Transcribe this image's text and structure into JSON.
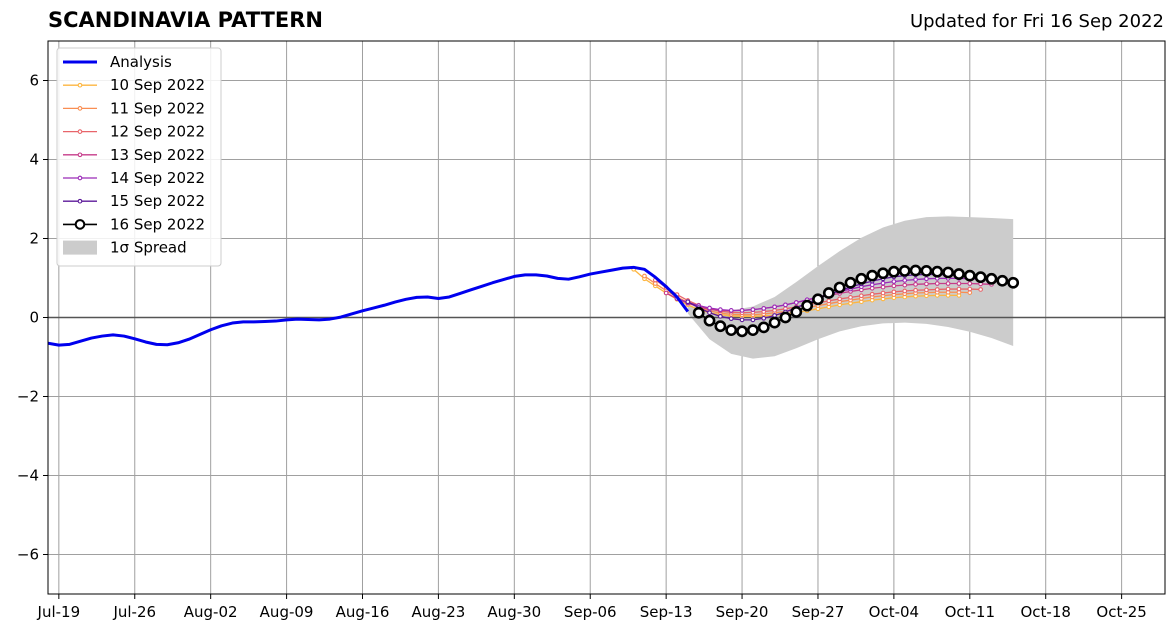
{
  "header": {
    "title": "SCANDINAVIA PATTERN",
    "updated": "Updated for Fri 16 Sep 2022"
  },
  "chart_data": {
    "type": "line",
    "title": "SCANDINAVIA PATTERN",
    "xlabel": "",
    "ylabel": "",
    "xlim": [
      "2022-07-18",
      "2022-10-29"
    ],
    "ylim": [
      -7,
      7
    ],
    "x_ticks": [
      "2022-07-19",
      "2022-07-26",
      "2022-08-02",
      "2022-08-09",
      "2022-08-16",
      "2022-08-23",
      "2022-08-30",
      "2022-09-06",
      "2022-09-13",
      "2022-09-20",
      "2022-09-27",
      "2022-10-04",
      "2022-10-11",
      "2022-10-18",
      "2022-10-25"
    ],
    "x_tick_labels": [
      "Jul-19",
      "Jul-26",
      "Aug-02",
      "Aug-09",
      "Aug-16",
      "Aug-23",
      "Aug-30",
      "Sep-06",
      "Sep-13",
      "Sep-20",
      "Sep-27",
      "Oct-04",
      "Oct-11",
      "Oct-18",
      "Oct-25"
    ],
    "y_ticks": [
      -6,
      -4,
      -2,
      0,
      2,
      4,
      6
    ],
    "y_tick_labels": [
      "−6",
      "−4",
      "−2",
      "0",
      "2",
      "4",
      "6"
    ],
    "grid": true,
    "zero_line": 0,
    "legend_position": "top-left",
    "analysis": {
      "name": "Analysis",
      "color": "#0000ee",
      "x": [
        "2022-07-18",
        "2022-07-19",
        "2022-07-20",
        "2022-07-21",
        "2022-07-22",
        "2022-07-23",
        "2022-07-24",
        "2022-07-25",
        "2022-07-26",
        "2022-07-27",
        "2022-07-28",
        "2022-07-29",
        "2022-07-30",
        "2022-07-31",
        "2022-08-01",
        "2022-08-02",
        "2022-08-03",
        "2022-08-04",
        "2022-08-05",
        "2022-08-06",
        "2022-08-07",
        "2022-08-08",
        "2022-08-09",
        "2022-08-10",
        "2022-08-11",
        "2022-08-12",
        "2022-08-13",
        "2022-08-14",
        "2022-08-15",
        "2022-08-16",
        "2022-08-17",
        "2022-08-18",
        "2022-08-19",
        "2022-08-20",
        "2022-08-21",
        "2022-08-22",
        "2022-08-23",
        "2022-08-24",
        "2022-08-25",
        "2022-08-26",
        "2022-08-27",
        "2022-08-28",
        "2022-08-29",
        "2022-08-30",
        "2022-08-31",
        "2022-09-01",
        "2022-09-02",
        "2022-09-03",
        "2022-09-04",
        "2022-09-05",
        "2022-09-06",
        "2022-09-07",
        "2022-09-08",
        "2022-09-09",
        "2022-09-10",
        "2022-09-11",
        "2022-09-12",
        "2022-09-13",
        "2022-09-14",
        "2022-09-15"
      ],
      "y": [
        -0.65,
        -0.7,
        -0.68,
        -0.6,
        -0.52,
        -0.47,
        -0.44,
        -0.47,
        -0.54,
        -0.62,
        -0.68,
        -0.69,
        -0.64,
        -0.55,
        -0.43,
        -0.31,
        -0.21,
        -0.14,
        -0.11,
        -0.11,
        -0.1,
        -0.09,
        -0.06,
        -0.04,
        -0.05,
        -0.06,
        -0.04,
        0.01,
        0.09,
        0.17,
        0.24,
        0.31,
        0.39,
        0.46,
        0.51,
        0.52,
        0.48,
        0.52,
        0.61,
        0.7,
        0.79,
        0.88,
        0.96,
        1.04,
        1.08,
        1.08,
        1.05,
        0.99,
        0.97,
        1.03,
        1.1,
        1.15,
        1.2,
        1.25,
        1.27,
        1.22,
        1.02,
        0.78,
        0.52,
        0.15
      ]
    },
    "spread": {
      "name": "1σ Spread",
      "color": "#cccccc",
      "x": [
        "2022-09-15",
        "2022-09-17",
        "2022-09-19",
        "2022-09-21",
        "2022-09-23",
        "2022-09-25",
        "2022-09-27",
        "2022-09-29",
        "2022-10-01",
        "2022-10-03",
        "2022-10-05",
        "2022-10-07",
        "2022-10-09",
        "2022-10-11",
        "2022-10-13",
        "2022-10-15"
      ],
      "upper": [
        0.3,
        0.22,
        0.18,
        0.28,
        0.52,
        0.9,
        1.3,
        1.68,
        2.02,
        2.28,
        2.45,
        2.54,
        2.56,
        2.54,
        2.52,
        2.49
      ],
      "lower": [
        0.1,
        -0.55,
        -0.92,
        -1.04,
        -0.98,
        -0.78,
        -0.55,
        -0.35,
        -0.22,
        -0.15,
        -0.13,
        -0.16,
        -0.24,
        -0.36,
        -0.52,
        -0.72
      ]
    },
    "series": [
      {
        "name": "10 Sep 2022",
        "color": "#fdb640",
        "x": [
          "2022-09-10",
          "2022-09-11",
          "2022-09-12",
          "2022-09-13",
          "2022-09-14",
          "2022-09-15",
          "2022-09-16",
          "2022-09-17",
          "2022-09-18",
          "2022-09-19",
          "2022-09-20",
          "2022-09-21",
          "2022-09-22",
          "2022-09-23",
          "2022-09-24",
          "2022-09-25",
          "2022-09-26",
          "2022-09-27",
          "2022-09-28",
          "2022-09-29",
          "2022-09-30",
          "2022-10-01",
          "2022-10-02",
          "2022-10-03",
          "2022-10-04",
          "2022-10-05",
          "2022-10-06",
          "2022-10-07",
          "2022-10-08",
          "2022-10-09",
          "2022-10-10"
        ],
        "y": [
          1.22,
          0.98,
          0.8,
          0.62,
          0.46,
          0.32,
          0.2,
          0.12,
          0.07,
          0.04,
          0.03,
          0.03,
          0.04,
          0.06,
          0.09,
          0.13,
          0.17,
          0.22,
          0.27,
          0.32,
          0.36,
          0.4,
          0.44,
          0.47,
          0.5,
          0.52,
          0.54,
          0.55,
          0.56,
          0.56,
          0.56
        ]
      },
      {
        "name": "11 Sep 2022",
        "color": "#f98e52",
        "x": [
          "2022-09-11",
          "2022-09-12",
          "2022-09-13",
          "2022-09-14",
          "2022-09-15",
          "2022-09-16",
          "2022-09-17",
          "2022-09-18",
          "2022-09-19",
          "2022-09-20",
          "2022-09-21",
          "2022-09-22",
          "2022-09-23",
          "2022-09-24",
          "2022-09-25",
          "2022-09-26",
          "2022-09-27",
          "2022-09-28",
          "2022-09-29",
          "2022-09-30",
          "2022-10-01",
          "2022-10-02",
          "2022-10-03",
          "2022-10-04",
          "2022-10-05",
          "2022-10-06",
          "2022-10-07",
          "2022-10-08",
          "2022-10-09",
          "2022-10-10",
          "2022-10-11"
        ],
        "y": [
          1.05,
          0.86,
          0.68,
          0.52,
          0.38,
          0.26,
          0.17,
          0.11,
          0.08,
          0.07,
          0.07,
          0.09,
          0.12,
          0.15,
          0.2,
          0.25,
          0.3,
          0.35,
          0.4,
          0.44,
          0.48,
          0.52,
          0.55,
          0.58,
          0.6,
          0.62,
          0.63,
          0.64,
          0.64,
          0.64,
          0.63
        ]
      },
      {
        "name": "12 Sep 2022",
        "color": "#e8656a",
        "x": [
          "2022-09-12",
          "2022-09-13",
          "2022-09-14",
          "2022-09-15",
          "2022-09-16",
          "2022-09-17",
          "2022-09-18",
          "2022-09-19",
          "2022-09-20",
          "2022-09-21",
          "2022-09-22",
          "2022-09-23",
          "2022-09-24",
          "2022-09-25",
          "2022-09-26",
          "2022-09-27",
          "2022-09-28",
          "2022-09-29",
          "2022-09-30",
          "2022-10-01",
          "2022-10-02",
          "2022-10-03",
          "2022-10-04",
          "2022-10-05",
          "2022-10-06",
          "2022-10-07",
          "2022-10-08",
          "2022-10-09",
          "2022-10-10",
          "2022-10-11",
          "2022-10-12"
        ],
        "y": [
          0.95,
          0.76,
          0.58,
          0.43,
          0.31,
          0.22,
          0.16,
          0.13,
          0.12,
          0.13,
          0.15,
          0.18,
          0.22,
          0.27,
          0.32,
          0.37,
          0.42,
          0.47,
          0.51,
          0.55,
          0.59,
          0.62,
          0.65,
          0.67,
          0.69,
          0.7,
          0.71,
          0.72,
          0.72,
          0.72,
          0.71
        ]
      },
      {
        "name": "13 Sep 2022",
        "color": "#c63b8a",
        "x": [
          "2022-09-13",
          "2022-09-14",
          "2022-09-15",
          "2022-09-16",
          "2022-09-17",
          "2022-09-18",
          "2022-09-19",
          "2022-09-20",
          "2022-09-21",
          "2022-09-22",
          "2022-09-23",
          "2022-09-24",
          "2022-09-25",
          "2022-09-26",
          "2022-09-27",
          "2022-09-28",
          "2022-09-29",
          "2022-09-30",
          "2022-10-01",
          "2022-10-02",
          "2022-10-03",
          "2022-10-04",
          "2022-10-05",
          "2022-10-06",
          "2022-10-07",
          "2022-10-08",
          "2022-10-09",
          "2022-10-10",
          "2022-10-11",
          "2022-10-12",
          "2022-10-13"
        ],
        "y": [
          0.62,
          0.48,
          0.36,
          0.27,
          0.21,
          0.18,
          0.17,
          0.18,
          0.2,
          0.23,
          0.27,
          0.32,
          0.38,
          0.44,
          0.5,
          0.56,
          0.61,
          0.66,
          0.7,
          0.74,
          0.77,
          0.8,
          0.82,
          0.84,
          0.85,
          0.86,
          0.86,
          0.86,
          0.86,
          0.85,
          0.84
        ]
      },
      {
        "name": "14 Sep 2022",
        "color": "#9a2ab8",
        "x": [
          "2022-09-14",
          "2022-09-15",
          "2022-09-16",
          "2022-09-17",
          "2022-09-18",
          "2022-09-19",
          "2022-09-20",
          "2022-09-21",
          "2022-09-22",
          "2022-09-23",
          "2022-09-24",
          "2022-09-25",
          "2022-09-26",
          "2022-09-27",
          "2022-09-28",
          "2022-09-29",
          "2022-09-30",
          "2022-10-01",
          "2022-10-02",
          "2022-10-03",
          "2022-10-04",
          "2022-10-05",
          "2022-10-06",
          "2022-10-07",
          "2022-10-08",
          "2022-10-09",
          "2022-10-10",
          "2022-10-11",
          "2022-10-12",
          "2022-10-13",
          "2022-10-14"
        ],
        "y": [
          0.48,
          0.38,
          0.3,
          0.24,
          0.2,
          0.18,
          0.18,
          0.2,
          0.23,
          0.27,
          0.32,
          0.38,
          0.45,
          0.52,
          0.59,
          0.66,
          0.72,
          0.78,
          0.83,
          0.87,
          0.91,
          0.94,
          0.96,
          0.98,
          0.99,
          0.99,
          0.99,
          0.98,
          0.97,
          0.95,
          0.93
        ]
      },
      {
        "name": "15 Sep 2022",
        "color": "#5b1899",
        "x": [
          "2022-09-15",
          "2022-09-16",
          "2022-09-17",
          "2022-09-18",
          "2022-09-19",
          "2022-09-20",
          "2022-09-21",
          "2022-09-22",
          "2022-09-23",
          "2022-09-24",
          "2022-09-25",
          "2022-09-26",
          "2022-09-27",
          "2022-09-28",
          "2022-09-29",
          "2022-09-30",
          "2022-10-01",
          "2022-10-02",
          "2022-10-03",
          "2022-10-04",
          "2022-10-05",
          "2022-10-06",
          "2022-10-07",
          "2022-10-08",
          "2022-10-09",
          "2022-10-10",
          "2022-10-11",
          "2022-10-12",
          "2022-10-13",
          "2022-10-14",
          "2022-10-15"
        ],
        "y": [
          0.4,
          0.25,
          0.12,
          0.03,
          -0.03,
          -0.06,
          -0.06,
          -0.02,
          0.05,
          0.14,
          0.25,
          0.36,
          0.47,
          0.58,
          0.68,
          0.77,
          0.85,
          0.92,
          0.98,
          1.03,
          1.06,
          1.08,
          1.09,
          1.09,
          1.08,
          1.06,
          1.03,
          1.0,
          0.96,
          0.92,
          0.88
        ]
      },
      {
        "name": "16 Sep 2022",
        "color": "#000000",
        "x": [
          "2022-09-16",
          "2022-09-17",
          "2022-09-18",
          "2022-09-19",
          "2022-09-20",
          "2022-09-21",
          "2022-09-22",
          "2022-09-23",
          "2022-09-24",
          "2022-09-25",
          "2022-09-26",
          "2022-09-27",
          "2022-09-28",
          "2022-09-29",
          "2022-09-30",
          "2022-10-01",
          "2022-10-02",
          "2022-10-03",
          "2022-10-04",
          "2022-10-05",
          "2022-10-06",
          "2022-10-07",
          "2022-10-08",
          "2022-10-09",
          "2022-10-10",
          "2022-10-11",
          "2022-10-12",
          "2022-10-13",
          "2022-10-14",
          "2022-10-15"
        ],
        "y": [
          0.12,
          -0.08,
          -0.22,
          -0.32,
          -0.35,
          -0.32,
          -0.25,
          -0.13,
          0.0,
          0.14,
          0.3,
          0.46,
          0.62,
          0.76,
          0.88,
          0.98,
          1.06,
          1.12,
          1.16,
          1.18,
          1.19,
          1.18,
          1.16,
          1.14,
          1.1,
          1.06,
          1.02,
          0.98,
          0.93,
          0.88
        ]
      }
    ]
  }
}
